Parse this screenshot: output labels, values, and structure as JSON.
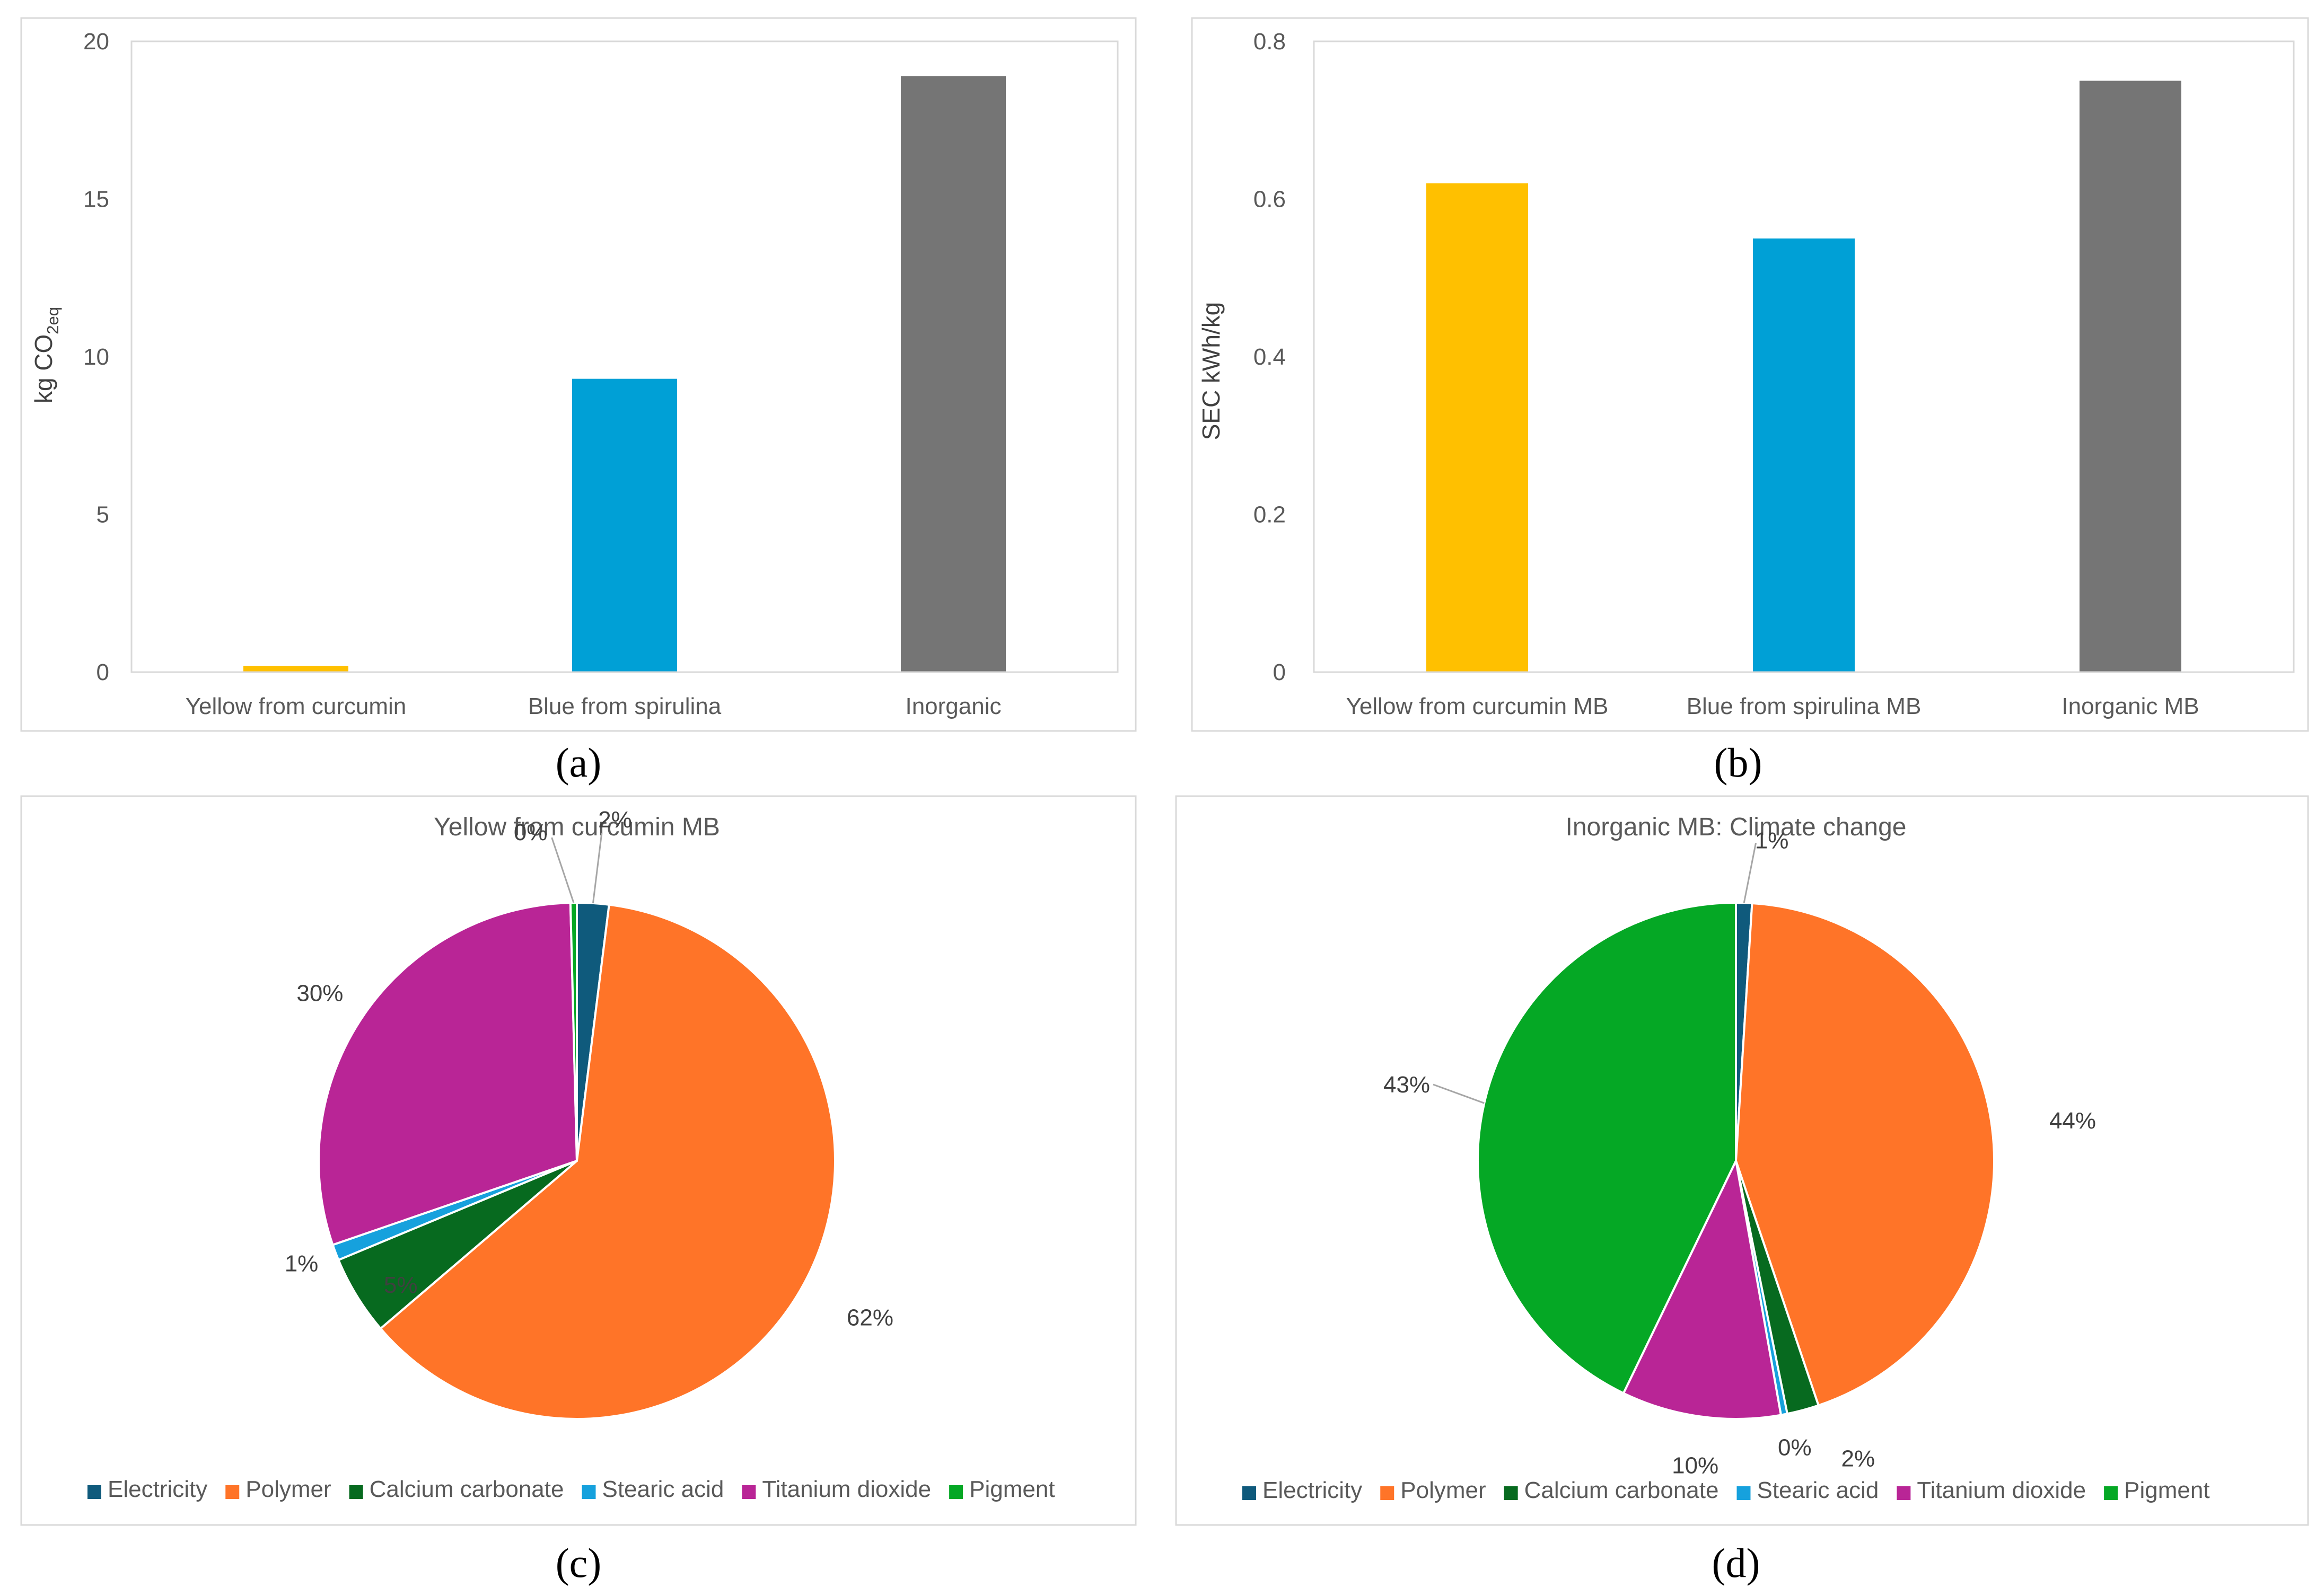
{
  "colors": {
    "yellow": "#FFC000",
    "blue": "#00A0D6",
    "gray": "#757575",
    "electricity": "#0F5A7C",
    "polymer": "#FF7428",
    "calcium_carbonate": "#076A1F",
    "stearic_acid": "#16A1DD",
    "titanium_dioxide": "#B92596",
    "pigment": "#05A825"
  },
  "chart_data": [
    {
      "panel": "(a)",
      "type": "bar",
      "title": "",
      "xlabel": "",
      "ylabel_main": "kg CO",
      "ylabel_sub": "2eq",
      "categories": [
        "Yellow from curcumin",
        "Blue from spirulina",
        "Inorganic"
      ],
      "values": [
        0.2,
        9.3,
        18.9
      ],
      "bar_colors": [
        "#FFC000",
        "#00A0D6",
        "#757575"
      ],
      "ylim": [
        0,
        20
      ],
      "yticks": [
        "0",
        "5",
        "10",
        "15",
        "20"
      ],
      "ytick_values": [
        0,
        5,
        10,
        15,
        20
      ],
      "grid": false
    },
    {
      "panel": "(b)",
      "type": "bar",
      "title": "",
      "xlabel": "",
      "ylabel_main": "SEC kWh/kg",
      "ylabel_sub": "",
      "categories": [
        "Yellow from curcumin MB",
        "Blue from spirulina MB",
        "Inorganic MB"
      ],
      "values": [
        0.62,
        0.55,
        0.75
      ],
      "bar_colors": [
        "#FFC000",
        "#00A0D6",
        "#757575"
      ],
      "ylim": [
        0,
        0.8
      ],
      "yticks": [
        "0",
        "0.2",
        "0.4",
        "0.6",
        "0.8"
      ],
      "ytick_values": [
        0,
        0.2,
        0.4,
        0.6,
        0.8
      ],
      "grid": false
    },
    {
      "panel": "(c)",
      "type": "pie",
      "title": "Yellow from curcumin MB",
      "legend_position": "bottom",
      "slices": [
        {
          "name": "Electricity",
          "value": 2,
          "label": "2%",
          "color": "#0F5A7C"
        },
        {
          "name": "Polymer",
          "value": 62,
          "label": "62%",
          "color": "#FF7428"
        },
        {
          "name": "Calcium carbonate",
          "value": 5,
          "label": "5%",
          "color": "#076A1F"
        },
        {
          "name": "Stearic acid",
          "value": 1,
          "label": "1%",
          "color": "#16A1DD"
        },
        {
          "name": "Titanium dioxide",
          "value": 30,
          "label": "30%",
          "color": "#B92596"
        },
        {
          "name": "Pigment",
          "value": 0.4,
          "label": "0%",
          "color": "#05A825"
        }
      ]
    },
    {
      "panel": "(d)",
      "type": "pie",
      "title": "Inorganic MB: Climate change",
      "legend_position": "bottom",
      "slices": [
        {
          "name": "Electricity",
          "value": 1,
          "label": "1%",
          "color": "#0F5A7C"
        },
        {
          "name": "Polymer",
          "value": 44,
          "label": "44%",
          "color": "#FF7428"
        },
        {
          "name": "Calcium carbonate",
          "value": 2,
          "label": "2%",
          "color": "#076A1F"
        },
        {
          "name": "Stearic acid",
          "value": 0.4,
          "label": "0%",
          "color": "#16A1DD"
        },
        {
          "name": "Titanium dioxide",
          "value": 10,
          "label": "10%",
          "color": "#B92596"
        },
        {
          "name": "Pigment",
          "value": 43,
          "label": "43%",
          "color": "#05A825"
        }
      ]
    }
  ]
}
